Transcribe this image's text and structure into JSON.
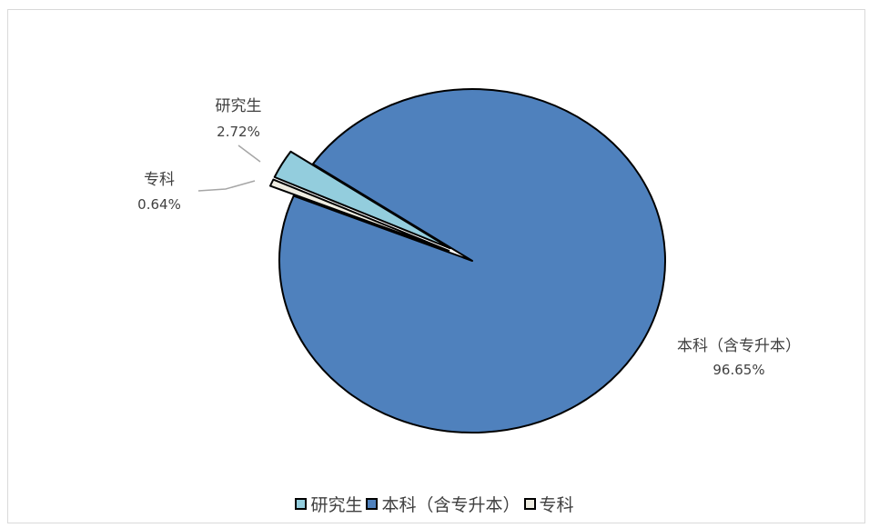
{
  "chart_data": {
    "type": "pie",
    "title": "",
    "exploded": true,
    "legend_position": "bottom",
    "slices": [
      {
        "label": "研究生",
        "value": 2.72,
        "value_label": "2.72%",
        "color": "#93cddd",
        "exploded": true
      },
      {
        "label": "本科（含专升本）",
        "value": 96.65,
        "value_label": "96.65%",
        "color": "#4f81bd",
        "exploded": false
      },
      {
        "label": "专科",
        "value": 0.64,
        "value_label": "0.64%",
        "color": "#eeece1",
        "exploded": true
      }
    ]
  }
}
